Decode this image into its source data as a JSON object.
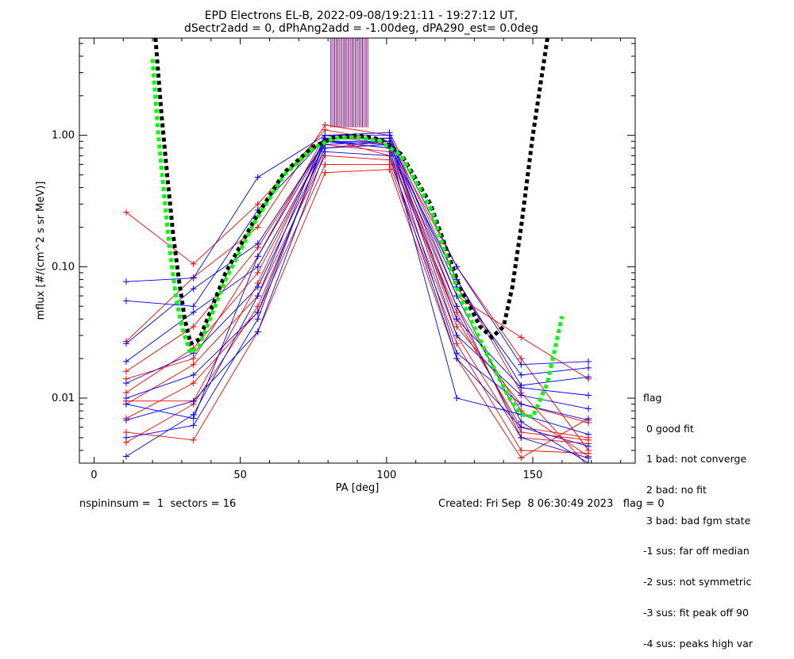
{
  "title_line1": "EPD Electrons EL-B, 2022-09-08/19:21:11 - 19:27:12 UT,",
  "title_line2": "dSectr2add = 0, dPhAng2add = -1.00deg, dPA290_est=   0.0deg",
  "footer": {
    "left": "nspininsum =  1  sectors = 16",
    "right": "Created: Fri Sep  8 06:30:49 2023   flag = 0"
  },
  "legend": {
    "title": "flag",
    "items": [
      " 0 good fit",
      " 1 bad: not converge",
      " 2 bad: no fit",
      " 3 bad: bad fgm state",
      "-1 sus: far off median",
      "-2 sus: not symmetric",
      "-3 sus: fit peak off 90",
      "-4 sus: peaks high var"
    ]
  },
  "colors": {
    "series_a": "#ff0000",
    "series_b": "#0000ff",
    "fit_green": "#00ff00",
    "fit_black": "#000000"
  },
  "chart_data": {
    "type": "line",
    "xlabel": "PA [deg]",
    "ylabel": "mflux [#/(cm^2 s sr MeV)]",
    "xlim": [
      -5,
      185
    ],
    "ylim": [
      0.0032,
      5.5
    ],
    "yscale": "log",
    "xticks": [
      0,
      50,
      100,
      150
    ],
    "yticks": [
      {
        "value": 0.01,
        "label": "0.01"
      },
      {
        "value": 0.1,
        "label": "0.10"
      },
      {
        "value": 1.0,
        "label": "1.00"
      }
    ],
    "pa_bins": [
      11,
      34,
      56,
      79,
      101,
      124,
      146,
      169
    ],
    "red_series": [
      [
        0.26,
        0.105,
        0.3,
        1.1,
        0.9,
        0.1,
        0.02,
        0.004
      ],
      [
        0.027,
        0.083,
        0.2,
        1.2,
        1.0,
        0.08,
        0.011,
        0.003
      ],
      [
        0.016,
        0.035,
        0.14,
        0.9,
        0.8,
        0.05,
        0.008,
        0.0036
      ],
      [
        0.011,
        0.024,
        0.09,
        0.85,
        0.75,
        0.04,
        0.006,
        0.005
      ],
      [
        0.009,
        0.018,
        0.06,
        0.7,
        0.65,
        0.03,
        0.005,
        0.0045
      ],
      [
        0.007,
        0.013,
        0.045,
        0.6,
        0.6,
        0.026,
        0.004,
        0.0038
      ],
      [
        0.0055,
        0.0048,
        0.032,
        0.52,
        0.55,
        0.02,
        0.0035,
        0.007
      ],
      [
        0.0046,
        0.009,
        0.05,
        0.8,
        0.9,
        0.035,
        0.009,
        0.0065
      ],
      [
        0.014,
        0.02,
        0.12,
        1.0,
        0.85,
        0.06,
        0.029,
        0.014
      ],
      [
        0.0095,
        0.0095,
        0.075,
        0.95,
        0.7,
        0.045,
        0.0055,
        0.0048
      ]
    ],
    "blue_series": [
      [
        0.077,
        0.082,
        0.48,
        1.0,
        1.05,
        0.1,
        0.018,
        0.019
      ],
      [
        0.055,
        0.05,
        0.27,
        0.95,
        0.95,
        0.07,
        0.015,
        0.017
      ],
      [
        0.026,
        0.068,
        0.15,
        0.9,
        0.9,
        0.04,
        0.012,
        0.0105
      ],
      [
        0.019,
        0.045,
        0.1,
        0.85,
        0.9,
        0.03,
        0.0105,
        0.0083
      ],
      [
        0.013,
        0.022,
        0.07,
        0.8,
        0.85,
        0.022,
        0.009,
        0.0068
      ],
      [
        0.01,
        0.015,
        0.045,
        0.9,
        0.8,
        0.01,
        0.0075,
        0.0053
      ],
      [
        0.0068,
        0.0095,
        0.032,
        0.75,
        0.7,
        0.02,
        0.006,
        0.0043
      ],
      [
        0.005,
        0.0062,
        0.04,
        0.95,
        0.95,
        0.05,
        0.005,
        0.0035
      ],
      [
        0.0036,
        0.0075,
        0.06,
        1.0,
        1.0,
        0.06,
        0.0066,
        0.0032
      ],
      [
        0.009,
        0.007,
        0.12,
        0.9,
        0.85,
        0.08,
        0.0125,
        0.0145
      ]
    ],
    "green_fit": {
      "x": [
        20,
        22,
        24,
        26,
        28,
        30,
        33,
        36,
        45,
        55,
        65,
        75,
        82,
        90,
        98,
        105,
        115,
        125,
        135,
        142,
        146,
        150,
        155,
        160
      ],
      "y": [
        3.8,
        1.0,
        0.35,
        0.13,
        0.06,
        0.035,
        0.022,
        0.025,
        0.08,
        0.22,
        0.5,
        0.8,
        0.95,
        0.97,
        0.9,
        0.7,
        0.28,
        0.06,
        0.02,
        0.01,
        0.0075,
        0.0072,
        0.013,
        0.042
      ]
    },
    "black_fit": {
      "x": [
        21,
        23,
        25,
        27,
        29,
        31,
        33,
        36,
        45,
        55,
        65,
        75,
        82,
        90,
        98,
        105,
        115,
        125,
        132,
        136,
        140,
        143,
        146,
        150,
        155
      ],
      "y": [
        5.5,
        1.5,
        0.5,
        0.18,
        0.08,
        0.04,
        0.026,
        0.028,
        0.09,
        0.23,
        0.52,
        0.82,
        0.96,
        1.0,
        0.93,
        0.72,
        0.3,
        0.07,
        0.035,
        0.029,
        0.035,
        0.07,
        0.2,
        1.0,
        5.5
      ]
    },
    "vertical_bursts": {
      "x_from": 81,
      "x_to": 94,
      "y_from": 1.15,
      "y_to": 5.5
    }
  }
}
